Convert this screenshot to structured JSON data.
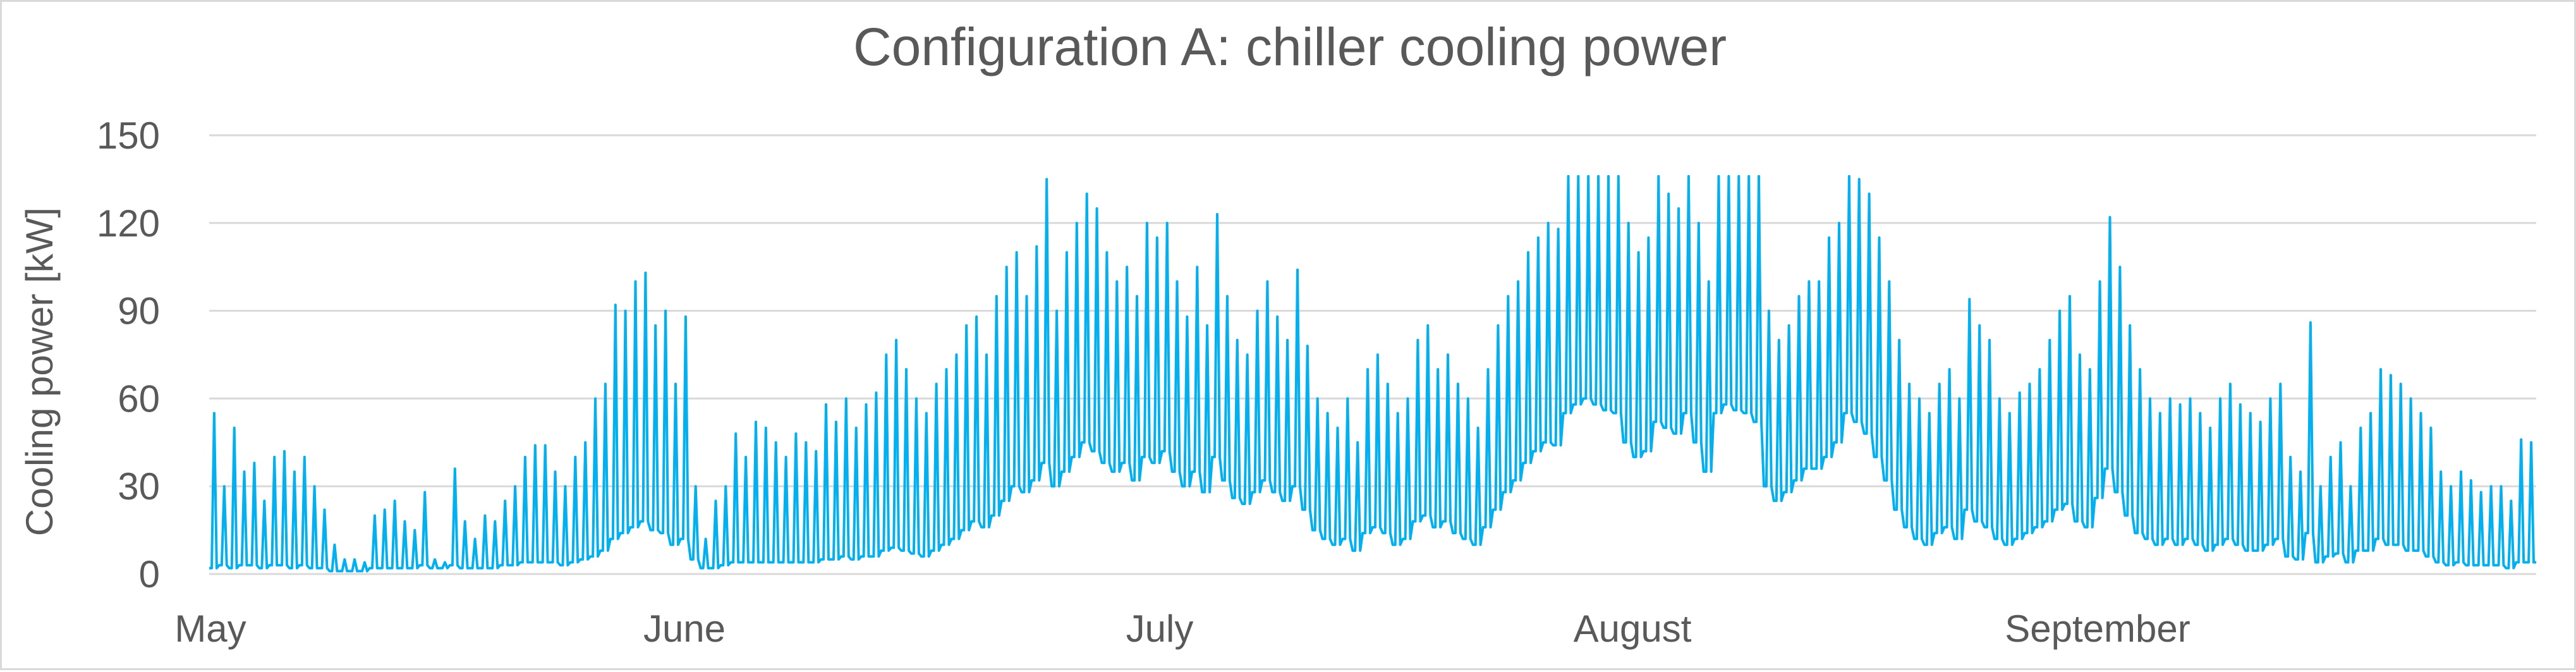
{
  "chart_data": {
    "type": "line",
    "title": "Configuration A: chiller cooling power",
    "xlabel": "",
    "ylabel": "Cooling power [kW]",
    "ylim": [
      0,
      150
    ],
    "yticks": [
      0,
      30,
      60,
      90,
      120,
      150
    ],
    "grid": true,
    "legend": "none",
    "x_month_labels": [
      "May",
      "June",
      "July",
      "August",
      "September"
    ],
    "series": [
      {
        "color": "#00b0f0",
        "daily_peak_kw": [
          55,
          30,
          50,
          35,
          38,
          25,
          40,
          42,
          35,
          40,
          30,
          22,
          10,
          5,
          5,
          4,
          20,
          22,
          25,
          18,
          15,
          28,
          5,
          4,
          36,
          18,
          12,
          20,
          18,
          25,
          30,
          40,
          44,
          44,
          35,
          30,
          40,
          45,
          60,
          65,
          92,
          90,
          100,
          103,
          85,
          90,
          65,
          88,
          30,
          12,
          25,
          30,
          48,
          40,
          52,
          50,
          45,
          40,
          48,
          45,
          42,
          58,
          52,
          60,
          50,
          58,
          62,
          75,
          80,
          70,
          60,
          55,
          65,
          70,
          75,
          85,
          88,
          75,
          95,
          105,
          110,
          95,
          112,
          135,
          90,
          110,
          120,
          130,
          125,
          110,
          100,
          105,
          95,
          120,
          115,
          120,
          100,
          88,
          105,
          85,
          123,
          95,
          80,
          75,
          90,
          100,
          88,
          80,
          104,
          78,
          60,
          55,
          50,
          60,
          45,
          70,
          75,
          65,
          55,
          60,
          80,
          85,
          70,
          75,
          65,
          60,
          50,
          70,
          85,
          95,
          100,
          110,
          115,
          120,
          118,
          136,
          136,
          136,
          136,
          136,
          136,
          120,
          110,
          115,
          136,
          130,
          125,
          136,
          120,
          100,
          136,
          136,
          136,
          136,
          136,
          90,
          80,
          85,
          95,
          100,
          100,
          115,
          120,
          136,
          135,
          130,
          115,
          100,
          80,
          65,
          60,
          55,
          65,
          70,
          60,
          94,
          85,
          80,
          60,
          55,
          62,
          65,
          70,
          80,
          90,
          95,
          75,
          70,
          100,
          122,
          105,
          85,
          70,
          60,
          55,
          60,
          58,
          60,
          55,
          50,
          60,
          65,
          58,
          55,
          52,
          60,
          65,
          40,
          35,
          86,
          30,
          40,
          45,
          30,
          50,
          55,
          70,
          68,
          65,
          60,
          55,
          50,
          35,
          30,
          35,
          32,
          28,
          30,
          30,
          25,
          46,
          45
        ],
        "daily_base_kw": [
          2,
          3,
          2,
          3,
          3,
          2,
          3,
          3,
          2,
          3,
          2,
          2,
          1,
          1,
          1,
          1,
          2,
          2,
          2,
          2,
          2,
          3,
          2,
          2,
          3,
          2,
          2,
          2,
          2,
          3,
          3,
          4,
          4,
          4,
          4,
          3,
          4,
          5,
          6,
          8,
          12,
          14,
          16,
          18,
          15,
          14,
          10,
          12,
          5,
          2,
          2,
          3,
          4,
          4,
          4,
          4,
          4,
          4,
          4,
          4,
          4,
          5,
          5,
          6,
          5,
          6,
          6,
          8,
          9,
          8,
          7,
          6,
          8,
          10,
          12,
          15,
          18,
          16,
          20,
          25,
          30,
          28,
          32,
          38,
          30,
          35,
          40,
          45,
          42,
          38,
          35,
          38,
          32,
          40,
          38,
          42,
          35,
          30,
          35,
          28,
          40,
          32,
          26,
          24,
          28,
          32,
          28,
          25,
          30,
          22,
          15,
          12,
          10,
          12,
          8,
          14,
          16,
          14,
          10,
          12,
          18,
          20,
          16,
          18,
          14,
          12,
          10,
          16,
          22,
          28,
          32,
          38,
          42,
          45,
          44,
          55,
          58,
          60,
          58,
          56,
          55,
          45,
          40,
          42,
          52,
          50,
          48,
          55,
          45,
          35,
          55,
          58,
          56,
          55,
          52,
          30,
          25,
          28,
          32,
          36,
          36,
          40,
          45,
          55,
          52,
          48,
          40,
          32,
          22,
          16,
          12,
          10,
          14,
          16,
          12,
          22,
          18,
          16,
          12,
          10,
          12,
          14,
          16,
          18,
          22,
          24,
          18,
          16,
          26,
          36,
          28,
          20,
          14,
          12,
          10,
          12,
          10,
          12,
          10,
          8,
          10,
          12,
          10,
          8,
          8,
          10,
          12,
          6,
          5,
          14,
          4,
          6,
          7,
          4,
          8,
          8,
          12,
          10,
          10,
          8,
          8,
          6,
          4,
          3,
          4,
          3,
          3,
          3,
          3,
          2,
          4,
          4
        ]
      }
    ]
  }
}
